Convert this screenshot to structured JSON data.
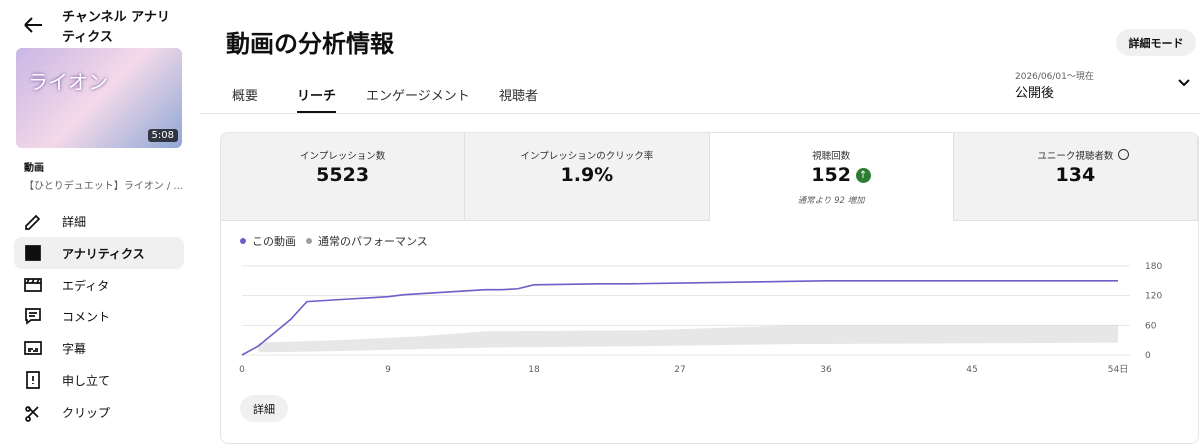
{
  "sidebar": {
    "back_title": "チャンネル アナリティクス",
    "thumbnail": {
      "title": "ライオン",
      "duration": "5:08"
    },
    "video_label": "動画",
    "video_title": "【ひとりデュエット】ライオン / ...",
    "nav": [
      {
        "label": "詳細",
        "active": false
      },
      {
        "label": "アナリティクス",
        "active": true
      },
      {
        "label": "エディタ",
        "active": false
      },
      {
        "label": "コメント",
        "active": false
      },
      {
        "label": "字幕",
        "active": false
      },
      {
        "label": "申し立て",
        "active": false
      },
      {
        "label": "クリップ",
        "active": false
      }
    ]
  },
  "header": {
    "title": "動画の分析情報",
    "mode_button": "詳細モード"
  },
  "tabs": [
    {
      "label": "概要",
      "active": false
    },
    {
      "label": "リーチ",
      "active": true
    },
    {
      "label": "エンゲージメント",
      "active": false
    },
    {
      "label": "視聴者",
      "active": false
    }
  ],
  "date_range": {
    "period": "2026/06/01～現在",
    "label": "公開後"
  },
  "metrics": [
    {
      "label": "インプレッション数",
      "value": "5523",
      "selected": false
    },
    {
      "label": "インプレッションのクリック率",
      "value": "1.9%",
      "selected": false
    },
    {
      "label": "視聴回数",
      "value": "152",
      "note": "通常より 92 増加",
      "selected": true
    },
    {
      "label": "ユニーク視聴者数",
      "value": "134",
      "selected": false
    }
  ],
  "chart_data": {
    "type": "line",
    "x": [
      0,
      1,
      2,
      3,
      4,
      5,
      6,
      7,
      8,
      9,
      10,
      11,
      12,
      13,
      14,
      15,
      16,
      17,
      18,
      20,
      22,
      24,
      26,
      28,
      30,
      32,
      34,
      36,
      40,
      45,
      50,
      54
    ],
    "series": [
      {
        "name": "この動画",
        "color": "#6b5fc9",
        "values": [
          0,
          18,
          45,
          72,
          108,
          110,
          112,
          114,
          116,
          118,
          122,
          124,
          126,
          128,
          130,
          132,
          132,
          134,
          142,
          143,
          144,
          144,
          145,
          146,
          147,
          148,
          149,
          150,
          150,
          150,
          150,
          150
        ]
      },
      {
        "name": "通常のパフォーマンス",
        "color": "#9e9e9e",
        "x": [
          1,
          6,
          11,
          15,
          25,
          34,
          54
        ],
        "values": [
          25,
          30,
          38,
          48,
          50,
          60,
          60
        ],
        "lower": [
          5,
          8,
          12,
          15,
          18,
          22,
          25
        ]
      }
    ],
    "xlim": [
      0,
      54
    ],
    "ylim": [
      0,
      180
    ],
    "xticks": [
      0,
      9,
      18,
      27,
      36,
      45,
      {
        "value": 54,
        "label": "54日"
      }
    ],
    "yticks": [
      0,
      60,
      120,
      180
    ],
    "grid": true
  },
  "details_button": "詳細"
}
